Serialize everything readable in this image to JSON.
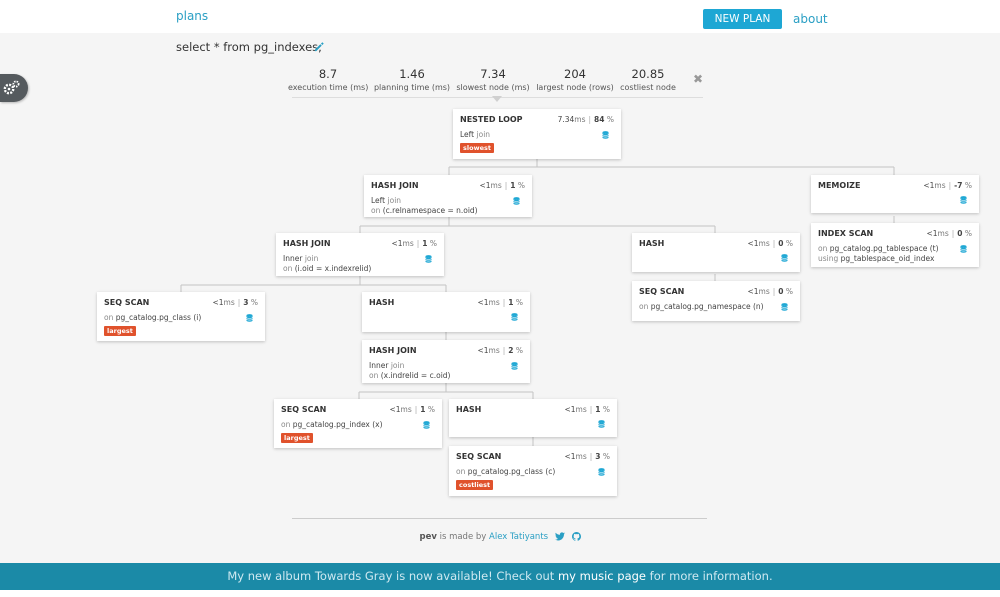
{
  "header": {
    "brand": "plans",
    "new_plan_label": "NEW PLAN",
    "about_label": "about"
  },
  "query": "select * from pg_indexes;",
  "stats": [
    {
      "value": "8.7",
      "label": "execution time (ms)"
    },
    {
      "value": "1.46",
      "label": "planning time (ms)"
    },
    {
      "value": "7.34",
      "label": "slowest node (ms)"
    },
    {
      "value": "204",
      "label": "largest node (rows)"
    },
    {
      "value": "20.85",
      "label": "costliest node"
    }
  ],
  "close_label": "✖",
  "nodes": [
    {
      "id": "n1",
      "title": "NESTED LOOP",
      "time": "7.34",
      "unit": "ms",
      "pct": "84",
      "line1_text": "Left",
      "line1_kw": "join",
      "line2_kw": "",
      "line2_text": "",
      "badge": "slowest"
    },
    {
      "id": "n2",
      "title": "HASH JOIN",
      "time": "<1",
      "unit": "ms",
      "pct": "1",
      "line1_text": "Left",
      "line1_kw": "join",
      "line2_kw": "on",
      "line2_text": "(c.relnamespace = n.oid)",
      "badge": ""
    },
    {
      "id": "n3",
      "title": "MEMOIZE",
      "time": "<1",
      "unit": "ms",
      "pct": "-7",
      "line1_text": "",
      "line1_kw": "",
      "line2_kw": "",
      "line2_text": "",
      "badge": ""
    },
    {
      "id": "n4",
      "title": "INDEX SCAN",
      "time": "<1",
      "unit": "ms",
      "pct": "0",
      "line1_text": "pg_catalog.pg_tablespace (t)",
      "line1_kw": "on",
      "line2_kw": "using",
      "line2_text": "pg_tablespace_oid_index",
      "badge": ""
    },
    {
      "id": "n5",
      "title": "HASH JOIN",
      "time": "<1",
      "unit": "ms",
      "pct": "1",
      "line1_text": "Inner",
      "line1_kw": "join",
      "line2_kw": "on",
      "line2_text": "(i.oid = x.indexrelid)",
      "badge": ""
    },
    {
      "id": "n6",
      "title": "HASH",
      "time": "<1",
      "unit": "ms",
      "pct": "0",
      "line1_text": "",
      "line1_kw": "",
      "line2_kw": "",
      "line2_text": "",
      "badge": ""
    },
    {
      "id": "n7",
      "title": "SEQ SCAN",
      "time": "<1",
      "unit": "ms",
      "pct": "0",
      "line1_text": "pg_catalog.pg_namespace (n)",
      "line1_kw": "on",
      "line2_kw": "",
      "line2_text": "",
      "badge": ""
    },
    {
      "id": "n8",
      "title": "SEQ SCAN",
      "time": "<1",
      "unit": "ms",
      "pct": "3",
      "line1_text": "pg_catalog.pg_class (i)",
      "line1_kw": "on",
      "line2_kw": "",
      "line2_text": "",
      "badge": "largest"
    },
    {
      "id": "n9",
      "title": "HASH",
      "time": "<1",
      "unit": "ms",
      "pct": "1",
      "line1_text": "",
      "line1_kw": "",
      "line2_kw": "",
      "line2_text": "",
      "badge": ""
    },
    {
      "id": "n10",
      "title": "HASH JOIN",
      "time": "<1",
      "unit": "ms",
      "pct": "2",
      "line1_text": "Inner",
      "line1_kw": "join",
      "line2_kw": "on",
      "line2_text": "(x.indrelid = c.oid)",
      "badge": ""
    },
    {
      "id": "n11",
      "title": "SEQ SCAN",
      "time": "<1",
      "unit": "ms",
      "pct": "1",
      "line1_text": "pg_catalog.pg_index (x)",
      "line1_kw": "on",
      "line2_kw": "",
      "line2_text": "",
      "badge": "largest"
    },
    {
      "id": "n12",
      "title": "HASH",
      "time": "<1",
      "unit": "ms",
      "pct": "1",
      "line1_text": "",
      "line1_kw": "",
      "line2_kw": "",
      "line2_text": "",
      "badge": ""
    },
    {
      "id": "n13",
      "title": "SEQ SCAN",
      "time": "<1",
      "unit": "ms",
      "pct": "3",
      "line1_text": "pg_catalog.pg_class (c)",
      "line1_kw": "on",
      "line2_kw": "",
      "line2_text": "",
      "badge": "costliest"
    }
  ],
  "footer": {
    "pev": "pev",
    "made_by": "is made by",
    "author": "Alex Tatiyants"
  },
  "banner": {
    "before": "My new album Towards Gray is now available! Check out ",
    "link": "my music page",
    "after": " for more information."
  },
  "colors": {
    "accent": "#1ea7d4",
    "badge": "#e0522c",
    "banner": "#1b8aa7"
  }
}
